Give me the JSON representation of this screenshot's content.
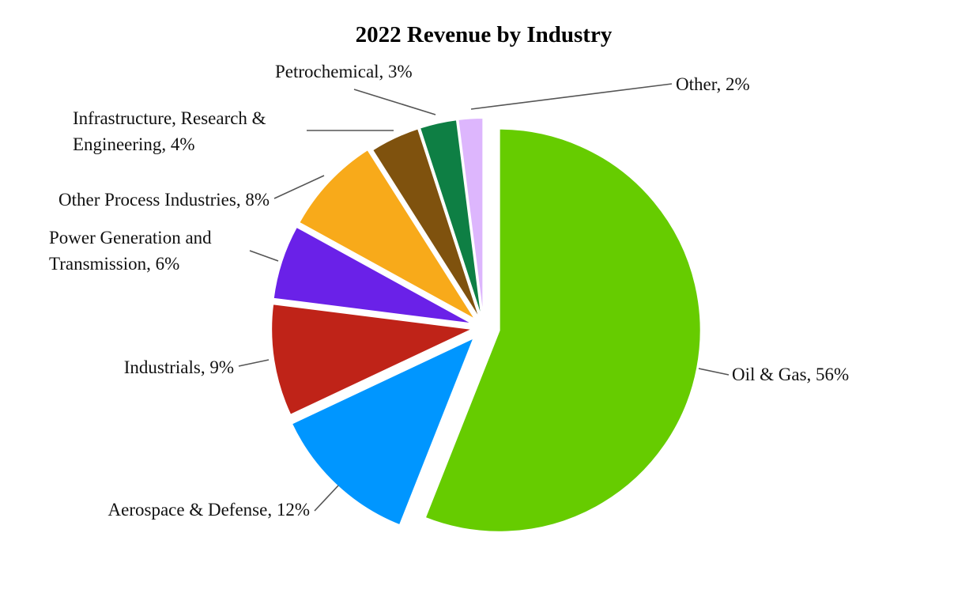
{
  "chart_data": {
    "type": "pie",
    "title": "2022 Revenue by Industry",
    "start_angle_deg": 0,
    "direction": "clockwise",
    "exploded": true,
    "slices": [
      {
        "label": "Oil & Gas",
        "value": 56,
        "display": "Oil & Gas, 56%",
        "color": "#66CC00"
      },
      {
        "label": "Aerospace & Defense",
        "value": 12,
        "display": "Aerospace & Defense, 12%",
        "color": "#0096FF"
      },
      {
        "label": "Industrials",
        "value": 9,
        "display": "Industrials, 9%",
        "color": "#BF2318"
      },
      {
        "label": "Power Generation and Transmission",
        "value": 6,
        "display_lines": [
          "Power Generation and",
          "Transmission, 6%"
        ],
        "color": "#6A21E8"
      },
      {
        "label": "Other Process Industries",
        "value": 8,
        "display": "Other Process Industries, 8%",
        "color": "#F8AA1A"
      },
      {
        "label": "Infrastructure, Research & Engineering",
        "value": 4,
        "display_lines": [
          "Infrastructure, Research &",
          "Engineering, 4%"
        ],
        "color": "#7F520E"
      },
      {
        "label": "Petrochemical",
        "value": 3,
        "display": "Petrochemical, 3%",
        "color": "#0E7F44"
      },
      {
        "label": "Other",
        "value": 2,
        "display": "Other, 2%",
        "color": "#DDB6FD"
      }
    ]
  }
}
